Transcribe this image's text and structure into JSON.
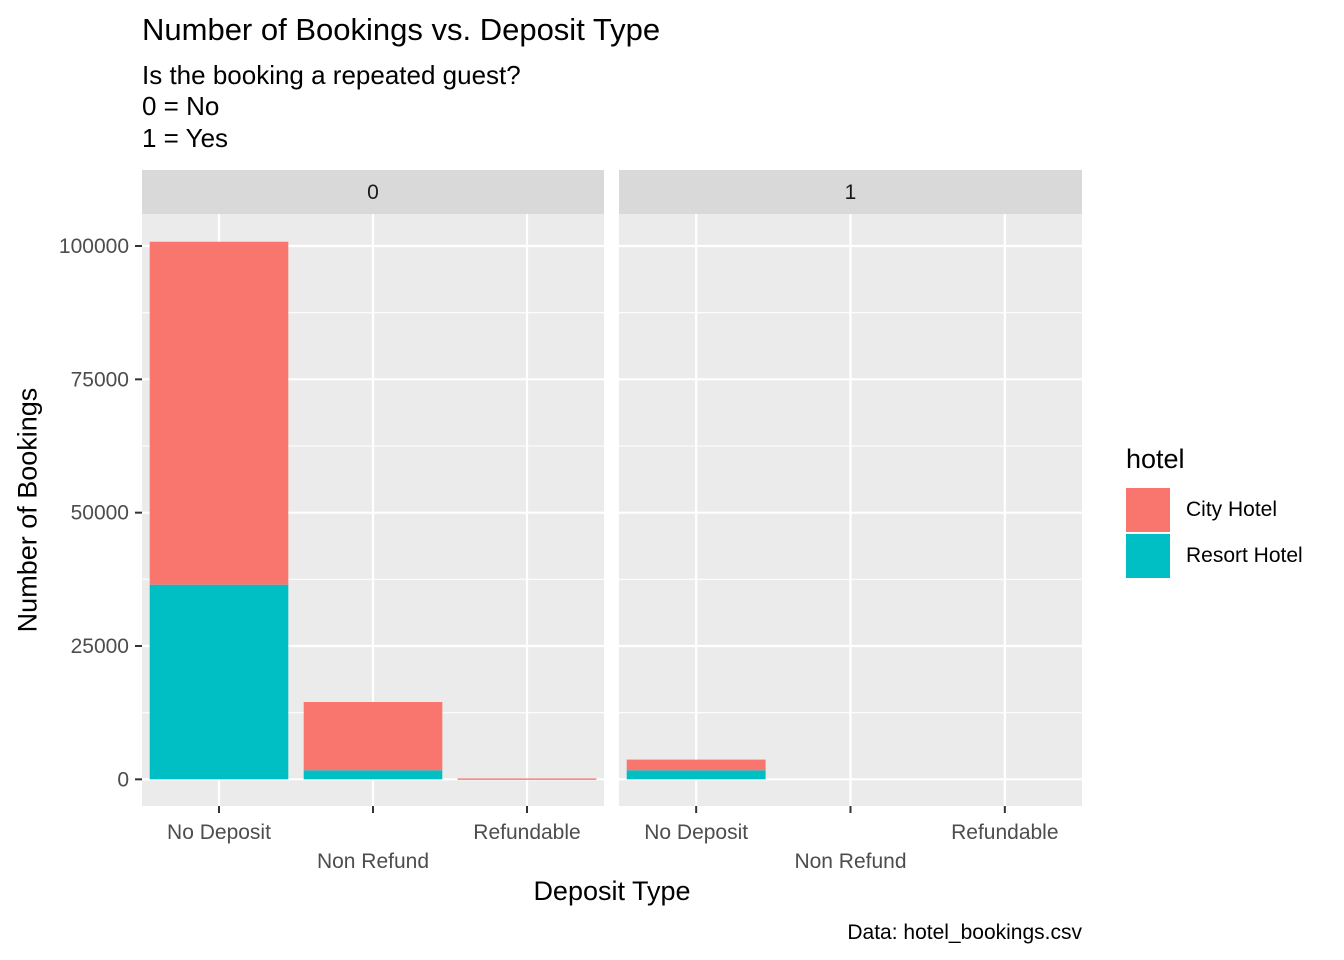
{
  "chart_data": {
    "type": "bar",
    "stacked": true,
    "title": "Number of Bookings vs. Deposit Type",
    "subtitle": [
      "Is the booking a repeated guest?",
      "0 = No",
      "1 = Yes"
    ],
    "caption": "Data: hotel_bookings.csv",
    "xlabel": "Deposit Type",
    "ylabel": "Number of Bookings",
    "ylim": [
      -5000,
      106000
    ],
    "yticks": [
      0,
      25000,
      50000,
      75000,
      100000
    ],
    "ytick_labels": [
      "0",
      "25000",
      "50000",
      "75000",
      "100000"
    ],
    "grid": true,
    "legend": {
      "title": "hotel",
      "position": "right"
    },
    "categories": [
      "No Deposit",
      "Non Refund",
      "Refundable"
    ],
    "series_colors": {
      "City Hotel": "#F8766D",
      "Resort Hotel": "#00BFC4"
    },
    "panels": [
      {
        "label": "0",
        "series": [
          {
            "name": "City Hotel",
            "values": [
              64300,
              12800,
              20
            ]
          },
          {
            "name": "Resort Hotel",
            "values": [
              36500,
              1700,
              150
            ]
          }
        ]
      },
      {
        "label": "1",
        "series": [
          {
            "name": "City Hotel",
            "values": [
              2000,
              0,
              0
            ]
          },
          {
            "name": "Resort Hotel",
            "values": [
              1700,
              0,
              0
            ]
          }
        ]
      }
    ]
  },
  "colors": {
    "panel_background": "#EBEBEB",
    "strip_background": "#D9D9D9",
    "grid": "#FFFFFF",
    "axis_text": "#4D4D4D"
  }
}
